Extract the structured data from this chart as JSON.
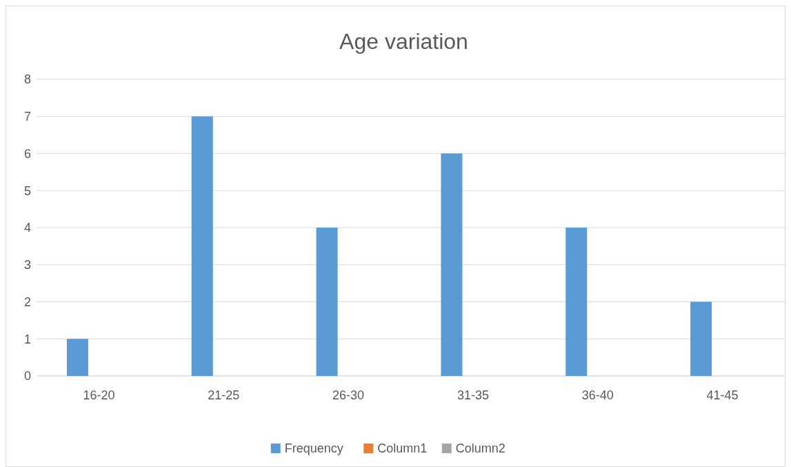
{
  "chart_data": {
    "type": "bar",
    "title": "Age variation",
    "categories": [
      "16-20",
      "21-25",
      "26-30",
      "31-35",
      "36-40",
      "41-45"
    ],
    "series": [
      {
        "name": "Frequency",
        "color": "#5b9bd5",
        "values": [
          1,
          7,
          4,
          6,
          4,
          2
        ]
      },
      {
        "name": "Column1",
        "color": "#ed7d31",
        "values": [
          null,
          null,
          null,
          null,
          null,
          null
        ]
      },
      {
        "name": "Column2",
        "color": "#a5a5a5",
        "values": [
          null,
          null,
          null,
          null,
          null,
          null
        ]
      }
    ],
    "ylim": [
      0,
      8
    ],
    "yticks": [
      0,
      1,
      2,
      3,
      4,
      5,
      6,
      7,
      8
    ],
    "grid": "y",
    "legend": "bottom"
  }
}
